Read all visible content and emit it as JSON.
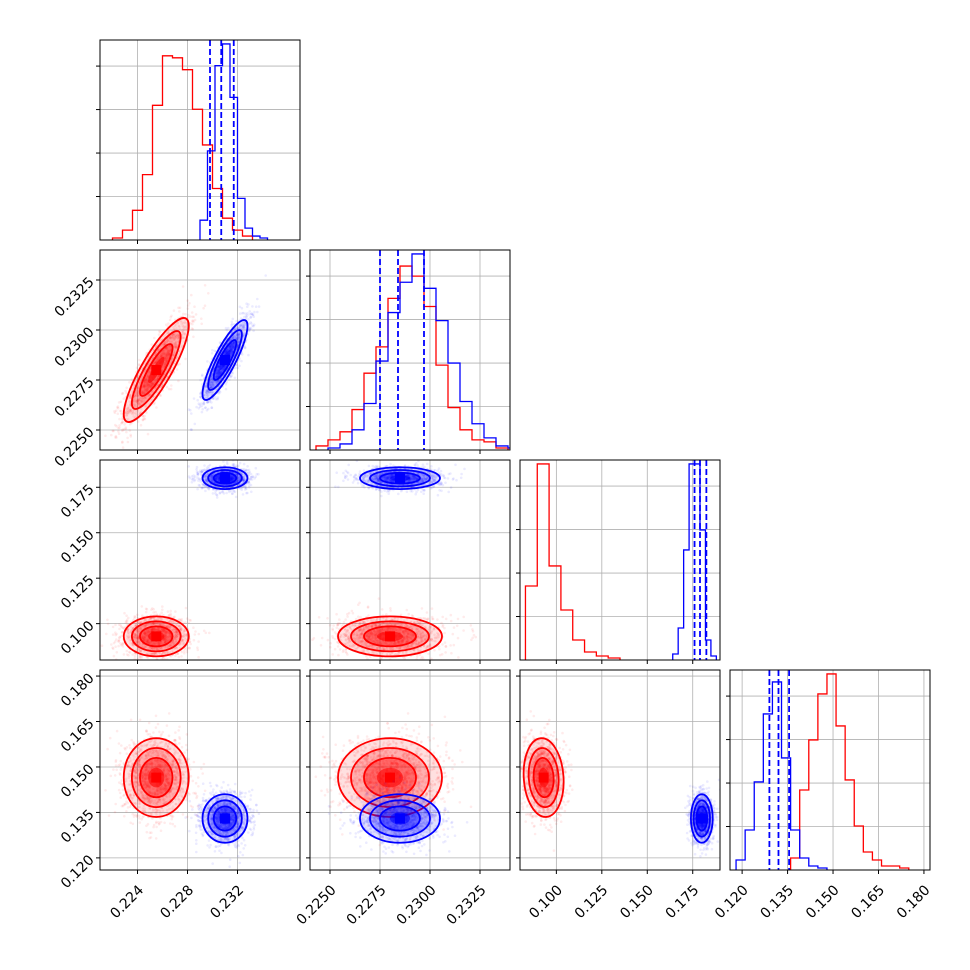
{
  "chart_data": {
    "type": "corner",
    "grid": true,
    "colors": {
      "series_a": "#ff0000",
      "series_b": "#0000ff"
    },
    "params": [
      {
        "range": [
          0.221,
          0.237
        ],
        "ticks": [
          0.224,
          0.228,
          0.232
        ],
        "tick_labels": [
          "0.224",
          "0.228",
          "0.232"
        ]
      },
      {
        "range": [
          0.224,
          0.234
        ],
        "ticks": [
          0.225,
          0.2275,
          0.23,
          0.2325
        ],
        "tick_labels": [
          "0.2250",
          "0.2275",
          "0.2300",
          "0.2325"
        ]
      },
      {
        "range": [
          0.08,
          0.19
        ],
        "ticks": [
          0.1,
          0.125,
          0.15,
          0.175
        ],
        "tick_labels": [
          "0.100",
          "0.125",
          "0.150",
          "0.175"
        ]
      },
      {
        "range": [
          0.116,
          0.182
        ],
        "ticks": [
          0.12,
          0.135,
          0.15,
          0.165,
          0.18
        ],
        "tick_labels": [
          "0.120",
          "0.135",
          "0.150",
          "0.165",
          "0.180"
        ]
      }
    ],
    "series": [
      {
        "color": "#ff0000",
        "mean": [
          0.2255,
          0.228,
          0.093,
          0.1465
        ],
        "sd": [
          0.0013,
          0.0013,
          0.0055,
          0.0065
        ],
        "corr": {
          "0-1": 0.85,
          "0-2": 0.0,
          "0-3": 0.0,
          "1-2": 0.0,
          "1-3": 0.0,
          "2-3": -0.1
        },
        "histograms": [
          {
            "edges_start": 0.222,
            "bin_width": 0.0008,
            "counts": [
              0.01,
              0.05,
              0.15,
              0.33,
              0.68,
              0.93,
              0.92,
              0.86,
              0.66,
              0.48,
              0.26,
              0.11,
              0.05,
              0.02
            ]
          },
          {
            "edges_start": 0.2243,
            "bin_width": 0.0006,
            "counts": [
              0.02,
              0.05,
              0.09,
              0.2,
              0.38,
              0.51,
              0.75,
              0.91,
              0.86,
              0.71,
              0.42,
              0.21,
              0.1,
              0.05,
              0.04,
              0.01
            ]
          },
          {
            "edges_start": 0.083,
            "bin_width": 0.0065,
            "counts": [
              0.37,
              0.98,
              0.47,
              0.25,
              0.1,
              0.04,
              0.02,
              0.01
            ]
          },
          {
            "edges_start": 0.136,
            "bin_width": 0.003,
            "counts": [
              0.06,
              0.4,
              0.65,
              0.88,
              0.98,
              0.72,
              0.45,
              0.22,
              0.09,
              0.05,
              0.02,
              0.02,
              0.01
            ]
          }
        ]
      },
      {
        "color": "#0000ff",
        "mean": [
          0.231,
          0.2285,
          0.18,
          0.133
        ],
        "sd": [
          0.0009,
          0.001,
          0.003,
          0.004
        ],
        "corr": {
          "0-1": 0.85,
          "0-2": 0.0,
          "0-3": 0.0,
          "1-2": 0.0,
          "1-3": 0.0,
          "2-3": 0.0
        },
        "quantiles": [
          [
            0.2298,
            0.2307,
            0.2317
          ],
          [
            0.2275,
            0.2284,
            0.2297
          ],
          [
            0.176,
            0.179,
            0.1825
          ],
          [
            0.129,
            0.132,
            0.1355
          ]
        ],
        "histograms": [
          {
            "edges_start": 0.229,
            "bin_width": 0.0006,
            "counts": [
              0.1,
              0.45,
              0.88,
              0.99,
              0.72,
              0.21,
              0.06,
              0.02,
              0.01
            ]
          },
          {
            "edges_start": 0.2249,
            "bin_width": 0.0006,
            "counts": [
              0.01,
              0.03,
              0.1,
              0.23,
              0.44,
              0.68,
              0.83,
              0.97,
              0.8,
              0.64,
              0.43,
              0.24,
              0.13,
              0.06,
              0.02,
              0.01
            ]
          },
          {
            "edges_start": 0.164,
            "bin_width": 0.003,
            "counts": [
              0.03,
              0.16,
              0.55,
              0.98,
              0.98,
              0.65,
              0.1,
              0.02
            ]
          },
          {
            "edges_start": 0.118,
            "bin_width": 0.003,
            "counts": [
              0.05,
              0.2,
              0.44,
              0.78,
              0.94,
              0.56,
              0.2,
              0.06,
              0.02,
              0.01
            ]
          }
        ]
      }
    ]
  }
}
